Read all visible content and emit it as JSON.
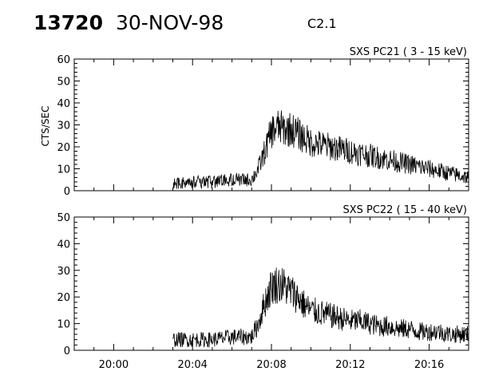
{
  "header": {
    "event_id": "13720",
    "date": "30-NOV-98",
    "flare_class": "C2.1"
  },
  "chart_data": [
    {
      "type": "line",
      "title": "SXS PC21  (  3 - 15 keV)",
      "xlabel": "",
      "ylabel": "CTS/SEC",
      "xlim": [
        "19:58",
        "20:18"
      ],
      "ylim": [
        0,
        60
      ],
      "yticks": [
        "0",
        "10",
        "20",
        "30",
        "40",
        "50",
        "60"
      ],
      "xticks": [],
      "series": [
        {
          "x": [
            "20:03:00",
            "20:04:00",
            "20:05:00",
            "20:06:00",
            "20:07:00",
            "20:07:20",
            "20:07:40",
            "20:08:00",
            "20:08:20",
            "20:08:40",
            "20:09:00",
            "20:09:20",
            "20:09:40",
            "20:10:00",
            "20:10:30",
            "20:11:00",
            "20:11:30",
            "20:12:00",
            "20:12:30",
            "20:13:00",
            "20:13:30",
            "20:14:00",
            "20:14:30",
            "20:15:00",
            "20:15:30",
            "20:16:00",
            "20:16:30",
            "20:17:00",
            "20:17:30",
            "20:18:00"
          ],
          "values": [
            3,
            4,
            4,
            5,
            5,
            10,
            18,
            27,
            29,
            28,
            28,
            26,
            24,
            22,
            21,
            20,
            19,
            18,
            17,
            16,
            15,
            14,
            13,
            12,
            11,
            10,
            9,
            8,
            7,
            6
          ]
        }
      ]
    },
    {
      "type": "line",
      "title": "SXS PC22  ( 15 - 40 keV)",
      "xlabel": "",
      "ylabel": "",
      "xlim": [
        "19:58",
        "20:18"
      ],
      "ylim": [
        0,
        50
      ],
      "yticks": [
        "0",
        "10",
        "20",
        "30",
        "40",
        "50"
      ],
      "xticks": [
        "20:00",
        "20:04",
        "20:08",
        "20:12",
        "20:16"
      ],
      "series": [
        {
          "x": [
            "20:03:00",
            "20:04:00",
            "20:05:00",
            "20:06:00",
            "20:07:00",
            "20:07:20",
            "20:07:40",
            "20:08:00",
            "20:08:20",
            "20:08:40",
            "20:09:00",
            "20:09:20",
            "20:09:40",
            "20:10:00",
            "20:10:30",
            "20:11:00",
            "20:11:30",
            "20:12:00",
            "20:12:30",
            "20:13:00",
            "20:13:30",
            "20:14:00",
            "20:14:30",
            "20:15:00",
            "20:15:30",
            "20:16:00",
            "20:16:30",
            "20:17:00",
            "20:17:30",
            "20:18:00"
          ],
          "values": [
            4,
            4,
            4,
            5,
            5,
            10,
            18,
            24,
            25,
            24,
            22,
            20,
            17,
            15,
            14,
            13,
            12,
            11,
            11,
            10,
            9,
            9,
            8,
            8,
            7,
            7,
            7,
            6,
            6,
            6
          ]
        }
      ]
    }
  ]
}
